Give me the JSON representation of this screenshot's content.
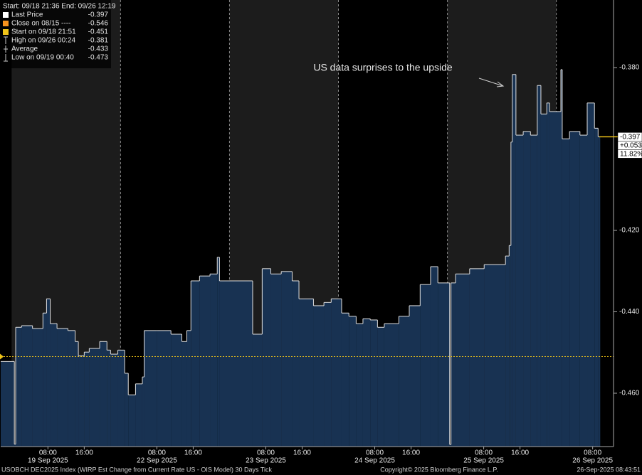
{
  "chart_data": {
    "type": "step-area",
    "annotation": "US data surprises to the upside",
    "legend": {
      "header": "Start: 09/18 21:36 End: 09/26 12:19",
      "items": [
        {
          "name": "Last Price",
          "value": -0.397,
          "color": "#ffffff"
        },
        {
          "name": "Close on 08/15 ----",
          "value": -0.546,
          "color": "#f7931e"
        },
        {
          "name": "Start on 09/18 21:51",
          "value": -0.451,
          "color": "#f0c419"
        },
        {
          "name": "High on 09/26 00:24",
          "value": -0.381
        },
        {
          "name": "Average",
          "value": -0.433
        },
        {
          "name": "Low on 09/19 00:40",
          "value": -0.473
        }
      ]
    },
    "series": [
      {
        "color": "#e0e0e0",
        "area_color": "#183252",
        "x": [
          -2.4,
          0.6,
          0.9,
          2.2,
          4.6,
          6.9,
          7.7,
          8.5,
          10.0,
          12.4,
          14.0,
          14.7,
          16.0,
          17.1,
          19.4,
          21.0,
          21.8,
          23.4,
          24.9,
          25.7,
          27.3,
          28.8,
          29.2,
          32.0,
          35.1,
          37.5,
          38.6,
          39.5,
          41.4,
          43.7,
          45.3,
          45.8,
          53.1,
          55.2,
          57.1,
          59.4,
          61.8,
          63.3,
          66.5,
          68.8,
          70.4,
          72.7,
          74.3,
          75.9,
          77.4,
          79.0,
          80.6,
          82.1,
          85.3,
          87.6,
          90.0,
          92.3,
          93.9,
          96.5,
          96.8,
          97.8,
          100.9,
          104.1,
          107.2,
          108.8,
          109.6,
          110.0,
          110.3,
          111.1,
          112.7,
          114.3,
          115.8,
          116.6,
          117.9,
          118.5,
          121.0,
          121.3,
          122.9,
          125.2,
          126.8,
          128.4,
          129.2
        ],
        "values": [
          -0.4522,
          -0.4725,
          -0.4438,
          -0.4434,
          -0.4441,
          -0.4403,
          -0.4368,
          -0.4429,
          -0.4441,
          -0.4446,
          -0.4473,
          -0.4508,
          -0.4499,
          -0.449,
          -0.4473,
          -0.4494,
          -0.4504,
          -0.4494,
          -0.4551,
          -0.4604,
          -0.4577,
          -0.456,
          -0.4446,
          -0.4446,
          -0.4455,
          -0.4473,
          -0.4446,
          -0.4324,
          -0.4312,
          -0.4307,
          -0.4266,
          -0.4324,
          -0.4455,
          -0.4294,
          -0.4307,
          -0.4301,
          -0.4324,
          -0.4368,
          -0.4385,
          -0.4377,
          -0.4368,
          -0.4403,
          -0.4411,
          -0.4429,
          -0.4417,
          -0.442,
          -0.4438,
          -0.4429,
          -0.4411,
          -0.4385,
          -0.4333,
          -0.4289,
          -0.4329,
          -0.4726,
          -0.4329,
          -0.4307,
          -0.4294,
          -0.4284,
          -0.4284,
          -0.4263,
          -0.4237,
          -0.3983,
          -0.3817,
          -0.3966,
          -0.3957,
          -0.3966,
          -0.3844,
          -0.3914,
          -0.3887,
          -0.3908,
          -0.3805,
          -0.3975,
          -0.3957,
          -0.3966,
          -0.3887,
          -0.3949,
          -0.397
        ]
      }
    ],
    "last_price_box": {
      "change": {
        "value": 0.053,
        "label": "+0.053"
      },
      "change_pct": {
        "value": 11.82,
        "label": "11.82%"
      }
    },
    "xlim": [
      -2.4,
      132.6
    ],
    "ylim": [
      -0.4731,
      -0.3634
    ],
    "yticks": [
      {
        "value": -0.38,
        "label": "-0.380"
      },
      {
        "value": -0.42,
        "label": "-0.420"
      },
      {
        "value": -0.44,
        "label": "-0.440"
      },
      {
        "value": -0.46,
        "label": "-0.460"
      }
    ],
    "xticks": [
      {
        "value": 8,
        "label": "08:00"
      },
      {
        "value": 16,
        "label": "16:00"
      },
      {
        "value": 32,
        "label": "08:00"
      },
      {
        "value": 40,
        "label": "16:00"
      },
      {
        "value": 56,
        "label": "08:00"
      },
      {
        "value": 64,
        "label": "16:00"
      },
      {
        "value": 80,
        "label": "08:00"
      },
      {
        "value": 88,
        "label": "16:00"
      },
      {
        "value": 104,
        "label": "08:00"
      },
      {
        "value": 112,
        "label": "16:00"
      },
      {
        "value": 128,
        "label": "08:00"
      }
    ],
    "date_ticks": [
      {
        "value": 8,
        "label": "19 Sep 2025"
      },
      {
        "value": 32,
        "label": "22 Sep 2025"
      },
      {
        "value": 56,
        "label": "23 Sep 2025"
      },
      {
        "value": 80,
        "label": "24 Sep 2025"
      },
      {
        "value": 104,
        "label": "25 Sep 2025"
      },
      {
        "value": 128,
        "label": "26 Sep 2025"
      }
    ]
  },
  "footer": {
    "left": "USOBCH DEC2025 Index (WIRP Est Change from Current Rate US - OIS Model) 30 Days  Tick",
    "center": "Copyright© 2025 Bloomberg Finance L.P.",
    "right": "26-Sep-2025 08:43:51"
  }
}
